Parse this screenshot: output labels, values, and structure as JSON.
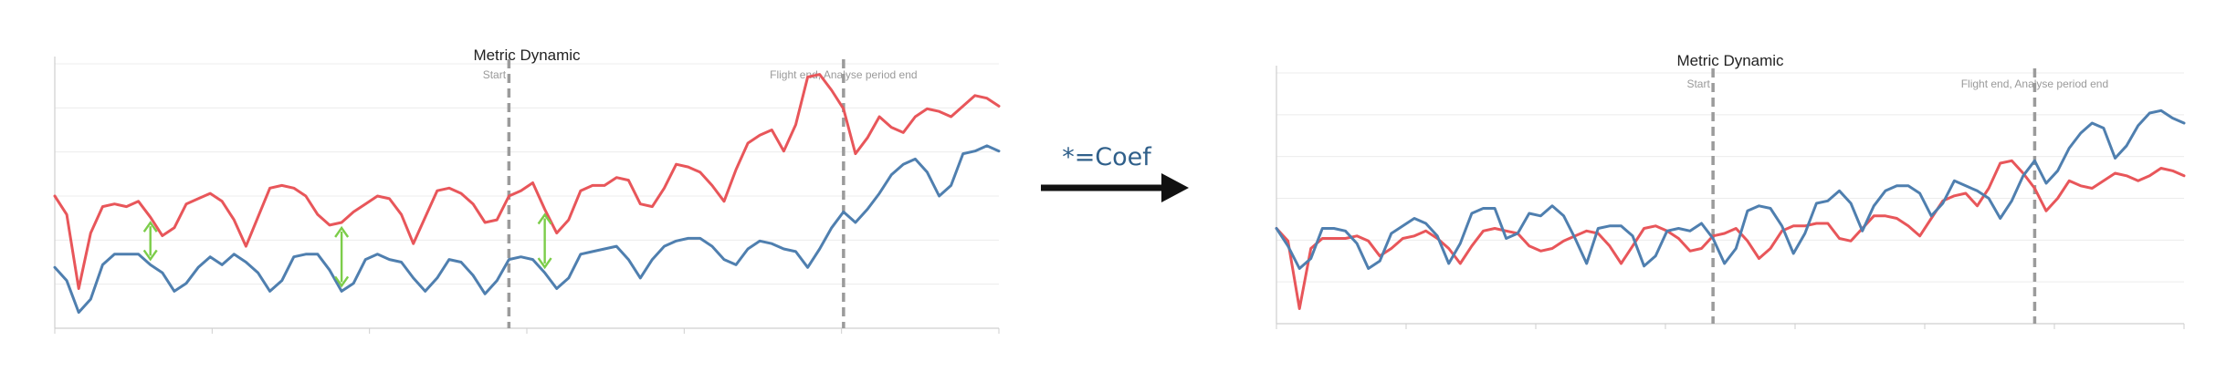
{
  "transform": {
    "label": "*=Coef",
    "arrow_color": "#111111"
  },
  "colors": {
    "series_a": "#e8565a",
    "series_b": "#4f7faf",
    "gap_arrows": "#7ccd4a",
    "marker_lines": "#9b9b9b"
  },
  "chart_data": [
    {
      "type": "line",
      "title": "Metric Dynamic",
      "grid": true,
      "ylim": [
        0,
        100
      ],
      "x": [
        0,
        1,
        2,
        3,
        4,
        5,
        6,
        7,
        8,
        9,
        10,
        11,
        12,
        13,
        14,
        15,
        16,
        17,
        18,
        19,
        20,
        21,
        22,
        23,
        24,
        25,
        26,
        27,
        28,
        29,
        30,
        31,
        32,
        33,
        34,
        35,
        36,
        37,
        38,
        39,
        40,
        41,
        42,
        43,
        44,
        45,
        46,
        47,
        48,
        49,
        50,
        51,
        52,
        53,
        54,
        55,
        56,
        57,
        58,
        59,
        60,
        61,
        62,
        63,
        64,
        65,
        66,
        67,
        68,
        69,
        70,
        71,
        72,
        73,
        74,
        75,
        76,
        77,
        78,
        79
      ],
      "xlim": [
        0,
        79
      ],
      "markers": [
        {
          "label": "Start",
          "x": 38
        },
        {
          "label": "Flight end, Analyse period end",
          "x": 66
        }
      ],
      "series": [
        {
          "values": [
            50,
            43,
            15,
            36,
            46,
            47,
            46,
            48,
            42,
            35,
            38,
            47,
            49,
            51,
            48,
            41,
            31,
            42,
            53,
            54,
            53,
            50,
            43,
            39,
            40,
            44,
            47,
            50,
            49,
            43,
            32,
            42,
            52,
            53,
            51,
            47,
            40,
            41,
            50,
            52,
            55,
            45,
            36,
            41,
            52,
            54,
            54,
            57,
            56,
            47,
            46,
            53,
            62,
            61,
            59,
            54,
            48,
            60,
            70,
            73,
            75,
            67,
            77,
            95,
            96,
            90,
            83,
            66,
            72,
            80,
            76,
            74,
            80,
            83,
            82,
            80,
            84,
            88,
            87,
            84
          ]
        },
        {
          "values": [
            23,
            18,
            6,
            11,
            24,
            28,
            28,
            28,
            24,
            21,
            14,
            17,
            23,
            27,
            24,
            28,
            25,
            21,
            14,
            18,
            27,
            28,
            28,
            22,
            14,
            17,
            26,
            28,
            26,
            25,
            19,
            14,
            19,
            26,
            25,
            20,
            13,
            18,
            26,
            27,
            26,
            21,
            15,
            19,
            28,
            29,
            30,
            31,
            26,
            19,
            26,
            31,
            33,
            34,
            34,
            31,
            26,
            24,
            30,
            33,
            32,
            30,
            29,
            23,
            30,
            38,
            44,
            40,
            45,
            51,
            58,
            62,
            64,
            59,
            50,
            54,
            66,
            67,
            69,
            67
          ]
        }
      ]
    },
    {
      "type": "line",
      "title": "Metric Dynamic",
      "grid": true,
      "ylim": [
        0,
        100
      ],
      "x": [
        0,
        1,
        2,
        3,
        4,
        5,
        6,
        7,
        8,
        9,
        10,
        11,
        12,
        13,
        14,
        15,
        16,
        17,
        18,
        19,
        20,
        21,
        22,
        23,
        24,
        25,
        26,
        27,
        28,
        29,
        30,
        31,
        32,
        33,
        34,
        35,
        36,
        37,
        38,
        39,
        40,
        41,
        42,
        43,
        44,
        45,
        46,
        47,
        48,
        49,
        50,
        51,
        52,
        53,
        54,
        55,
        56,
        57,
        58,
        59,
        60,
        61,
        62,
        63,
        64,
        65,
        66,
        67,
        68,
        69,
        70,
        71,
        72,
        73,
        74,
        75,
        76,
        77,
        78,
        79
      ],
      "xlim": [
        0,
        79
      ],
      "markers": [
        {
          "label": "Start",
          "x": 38
        },
        {
          "label": "Flight end, Analyse period end",
          "x": 66
        }
      ],
      "series": [
        {
          "values": [
            38,
            33,
            6,
            30,
            34,
            34,
            34,
            35,
            33,
            27,
            30,
            34,
            35,
            37,
            34,
            30,
            24,
            31,
            37,
            38,
            37,
            36,
            31,
            29,
            30,
            33,
            35,
            37,
            36,
            31,
            24,
            31,
            38,
            39,
            37,
            34,
            29,
            30,
            35,
            36,
            38,
            33,
            26,
            30,
            37,
            39,
            39,
            40,
            40,
            34,
            33,
            38,
            43,
            43,
            42,
            39,
            35,
            42,
            49,
            51,
            52,
            47,
            54,
            64,
            65,
            60,
            54,
            45,
            50,
            57,
            55,
            54,
            57,
            60,
            59,
            57,
            59,
            62,
            61,
            59
          ]
        },
        {
          "values": [
            38,
            31,
            22,
            26,
            38,
            38,
            37,
            32,
            22,
            25,
            36,
            39,
            42,
            40,
            35,
            24,
            32,
            44,
            46,
            46,
            34,
            36,
            44,
            43,
            47,
            43,
            34,
            24,
            38,
            39,
            39,
            35,
            23,
            27,
            37,
            38,
            37,
            40,
            34,
            24,
            30,
            45,
            47,
            46,
            39,
            28,
            36,
            48,
            49,
            53,
            48,
            37,
            47,
            53,
            55,
            55,
            52,
            43,
            48,
            57,
            55,
            53,
            50,
            42,
            49,
            59,
            65,
            56,
            61,
            70,
            76,
            80,
            78,
            66,
            71,
            79,
            84,
            85,
            82,
            80
          ]
        }
      ]
    }
  ]
}
